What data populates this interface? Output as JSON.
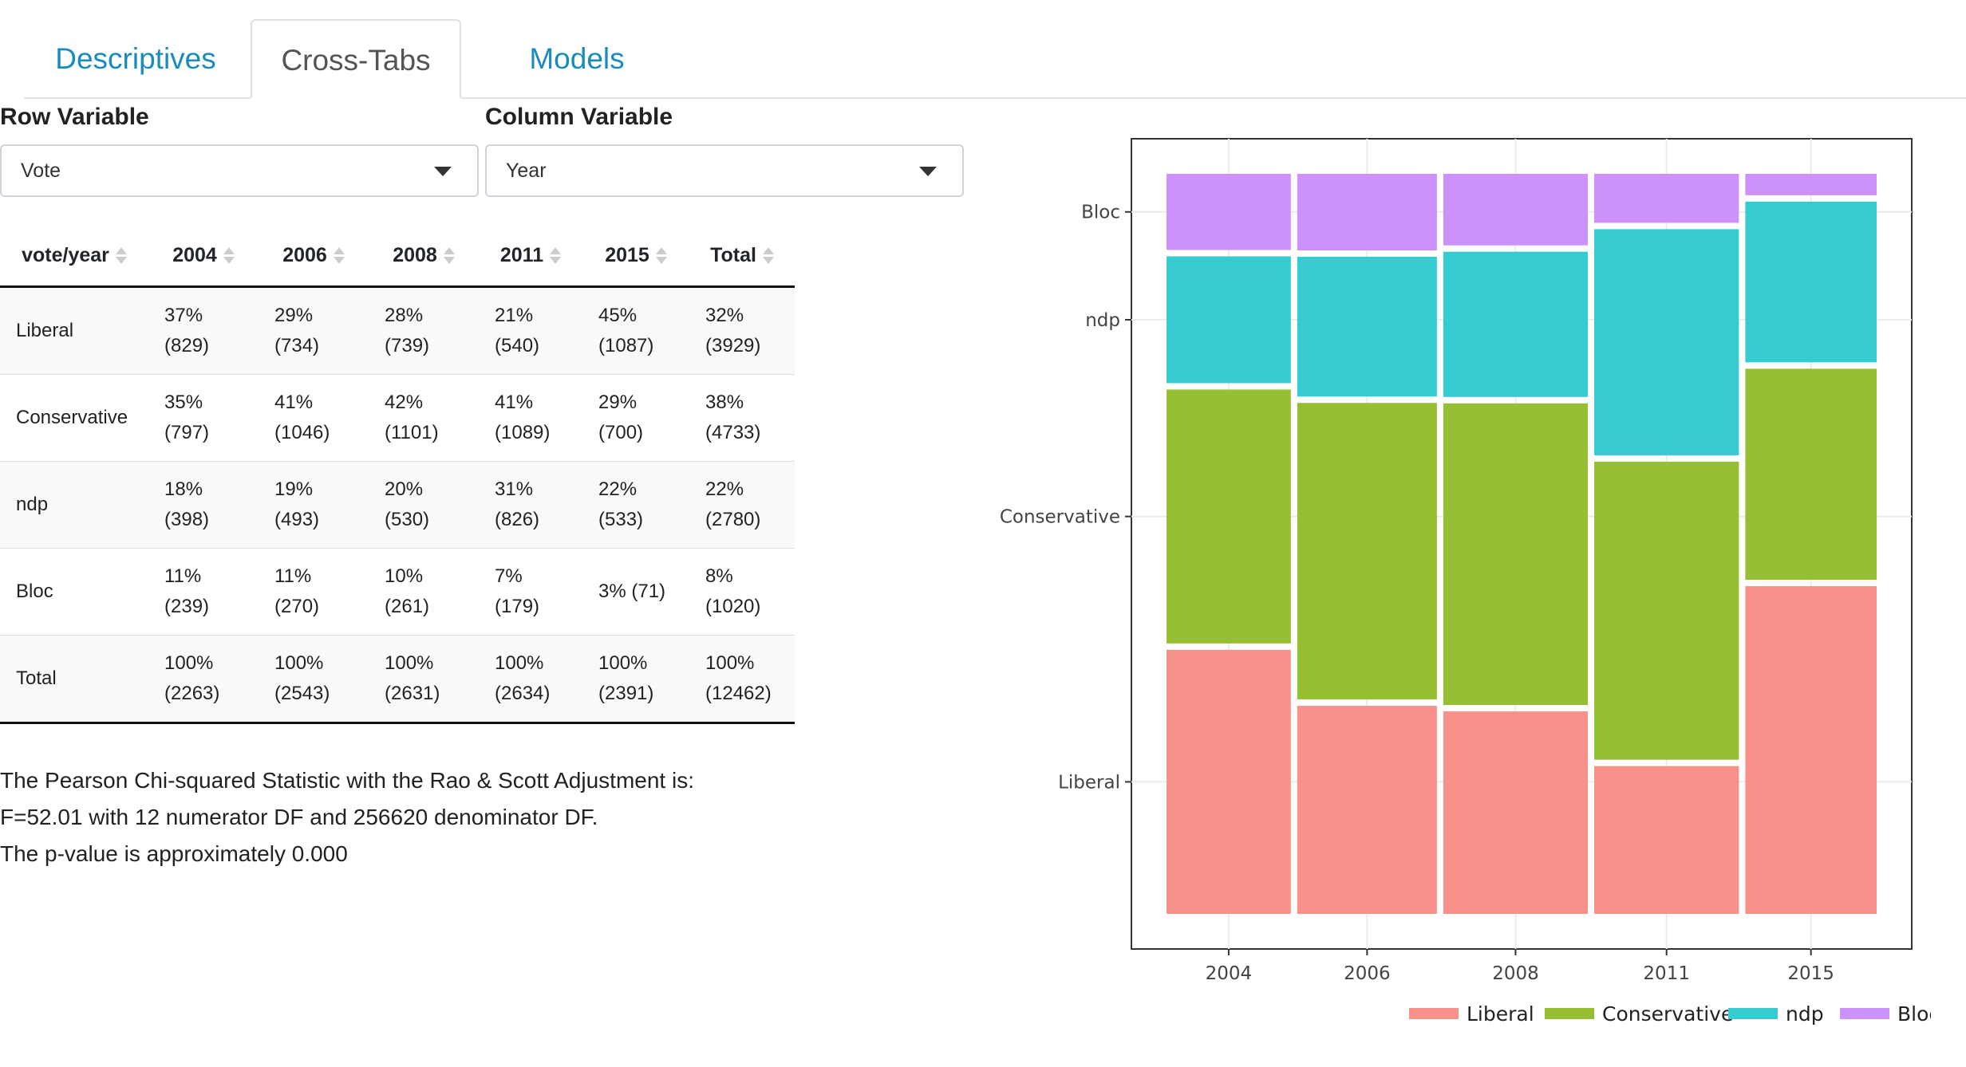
{
  "tabs": [
    {
      "label": "Descriptives",
      "active": false
    },
    {
      "label": "Cross-Tabs",
      "active": true
    },
    {
      "label": "Models",
      "active": false
    }
  ],
  "row_variable": {
    "label": "Row Variable",
    "value": "Vote"
  },
  "column_variable": {
    "label": "Column Variable",
    "value": "Year"
  },
  "table": {
    "headers": [
      "vote/year",
      "2004",
      "2006",
      "2008",
      "2011",
      "2015",
      "Total"
    ],
    "rows": [
      {
        "name": "Liberal",
        "cells": [
          [
            "37%",
            "(829)"
          ],
          [
            "29%",
            "(734)"
          ],
          [
            "28%",
            "(739)"
          ],
          [
            "21%",
            "(540)"
          ],
          [
            "45%",
            "(1087)"
          ],
          [
            "32%",
            "(3929)"
          ]
        ]
      },
      {
        "name": "Conservative",
        "cells": [
          [
            "35%",
            "(797)"
          ],
          [
            "41%",
            "(1046)"
          ],
          [
            "42%",
            "(1101)"
          ],
          [
            "41%",
            "(1089)"
          ],
          [
            "29%",
            "(700)"
          ],
          [
            "38%",
            "(4733)"
          ]
        ]
      },
      {
        "name": "ndp",
        "cells": [
          [
            "18%",
            "(398)"
          ],
          [
            "19%",
            "(493)"
          ],
          [
            "20%",
            "(530)"
          ],
          [
            "31%",
            "(826)"
          ],
          [
            "22%",
            "(533)"
          ],
          [
            "22%",
            "(2780)"
          ]
        ]
      },
      {
        "name": "Bloc",
        "cells": [
          [
            "11%",
            "(239)"
          ],
          [
            "11%",
            "(270)"
          ],
          [
            "10%",
            "(261)"
          ],
          [
            "7%",
            "(179)"
          ],
          [
            "3% (71)",
            ""
          ],
          [
            "8%",
            "(1020)"
          ]
        ]
      },
      {
        "name": "Total",
        "cells": [
          [
            "100%",
            "(2263)"
          ],
          [
            "100%",
            "(2543)"
          ],
          [
            "100%",
            "(2631)"
          ],
          [
            "100%",
            "(2634)"
          ],
          [
            "100%",
            "(2391)"
          ],
          [
            "100%",
            "(12462)"
          ]
        ]
      }
    ]
  },
  "stats": {
    "line1": "The Pearson Chi-squared Statistic with the Rao & Scott Adjustment is:",
    "line2": "F=52.01 with 12 numerator DF and 256620 denominator DF.",
    "line3": "The p-value is approximately 0.000"
  },
  "chart_data": {
    "type": "mosaic",
    "categories": [
      "2004",
      "2006",
      "2008",
      "2011",
      "2015"
    ],
    "column_totals": [
      2263,
      2543,
      2631,
      2634,
      2391
    ],
    "y_tick_labels": [
      "Liberal",
      "Conservative",
      "ndp",
      "Bloc"
    ],
    "series": [
      {
        "name": "Liberal",
        "color": "#f8918a",
        "values": [
          829,
          734,
          739,
          540,
          1087
        ]
      },
      {
        "name": "Conservative",
        "color": "#96bf33",
        "values": [
          797,
          1046,
          1101,
          1089,
          700
        ]
      },
      {
        "name": "ndp",
        "color": "#35cbd0",
        "values": [
          398,
          493,
          530,
          826,
          533
        ]
      },
      {
        "name": "Bloc",
        "color": "#cc91fb",
        "values": [
          239,
          270,
          261,
          179,
          71
        ]
      }
    ],
    "legend_position": "bottom-right",
    "grid": true
  }
}
